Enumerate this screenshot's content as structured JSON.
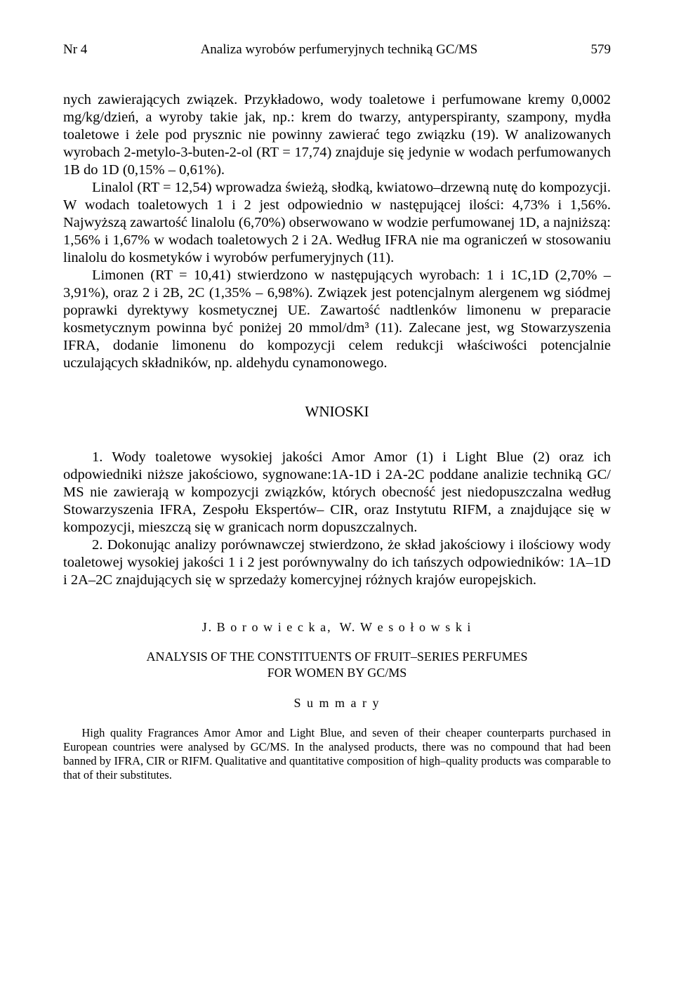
{
  "header": {
    "issue": "Nr 4",
    "running_title": "Analiza wyrobów perfumeryjnych techniką GC/MS",
    "page_number": "579"
  },
  "body": {
    "p1": "nych zawierających związek. Przykładowo, wody toaletowe i perfumowane kremy 0,0002 mg/kg/dzień, a wyroby takie jak, np.: krem do twarzy, antyperspiranty, szampony, mydła toaletowe i żele pod prysznic nie powinny zawierać tego związku (19). W analizowanych wyrobach 2-metylo-3-buten-2-ol (RT = 17,74) znajduje się jedynie w wodach perfumowanych 1B do 1D (0,15% – 0,61%).",
    "p2": "Linalol (RT = 12,54) wprowadza świeżą, słodką, kwiatowo–drzewną nutę do kompozycji. W wodach toaletowych 1 i 2 jest odpowiednio w następującej ilości: 4,73% i 1,56%. Najwyższą zawartość linalolu (6,70%) obserwowano w wodzie perfumowanej 1D, a najniższą: 1,56% i 1,67% w wodach toaletowych 2 i 2A. Według IFRA nie ma ograniczeń w stosowaniu linalolu do kosmetyków i wyrobów perfumeryjnych (11).",
    "p3": "Limonen (RT = 10,41) stwierdzono w następujących wyrobach: 1 i 1C,1D (2,70% – 3,91%), oraz 2 i 2B, 2C (1,35% – 6,98%). Związek jest potencjalnym alergenem wg siódmej poprawki dyrektywy kosmetycznej UE. Zawartość nadtlenków limonenu w preparacie kosmetycznym powinna być poniżej 20 mmol/dm³ (11). Zalecane jest, wg Stowarzyszenia IFRA, dodanie limonenu do kompozycji celem redukcji właściwości potencjalnie uczulających składników, np. aldehydu cynamonowego."
  },
  "conclusions": {
    "heading": "WNIOSKI",
    "p1": "1. Wody toaletowe wysokiej jakości Amor Amor (1) i Light Blue (2) oraz ich odpowiedniki niższe jakościowo, sygnowane:1A-1D i 2A-2C poddane analizie techniką GC/ MS nie zawierają w kompozycji związków, których obecność jest niedopuszczalna według Stowarzyszenia IFRA, Zespołu Ekspertów– CIR, oraz Instytutu RIFM, a znajdujące się w kompozycji, mieszczą się w granicach norm dopuszczalnych.",
    "p2": "2. Dokonując analizy porównawczej stwierdzono, że skład jakościowy i ilościowy wody toaletowej wysokiej jakości 1 i 2 jest porównywalny do ich tańszych odpowiedników: 1A–1D i 2A–2C znajdujących się w sprzedaży komercyjnej różnych krajów europejskich."
  },
  "english": {
    "authors": "J. B o r o w i e c k a, W. W e s o ł o w s k i",
    "title_line1": "ANALYSIS OF THE CONSTITUENTS OF FRUIT–SERIES PERFUMES",
    "title_line2": "FOR WOMEN BY GC/MS",
    "summary_label": "S u m m a r y",
    "summary_text": "High quality Fragrances Amor Amor and Light Blue, and seven of their cheaper counterparts purchased in European countries were analysed by GC/MS. In the analysed products, there was no compound that had been banned by IFRA, CIR or RIFM. Qualitative and quantitative composition of high–quality products was comparable to that of their substitutes."
  }
}
